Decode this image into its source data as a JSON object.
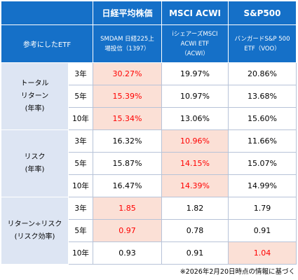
{
  "header": {
    "corner_label": "参考にしたETF",
    "columns": [
      {
        "title": "日経平均株価",
        "fund_lines": [
          "SMDAM 日経225上",
          "場投信（1397）"
        ]
      },
      {
        "title": "MSCI ACWI",
        "fund_lines": [
          "iシェアーズMSCI",
          "ACWI ETF",
          "（ACWI）"
        ]
      },
      {
        "title": "S&P500",
        "fund_lines": [
          "バンガードS&P 500",
          "ETF（VOO）"
        ]
      }
    ]
  },
  "groups": [
    {
      "label_lines": [
        "トータル",
        "リターン",
        "(年率)"
      ],
      "rows": [
        {
          "period": "3年",
          "values": [
            "30.27%",
            "19.97%",
            "20.86%"
          ],
          "highlight": [
            true,
            false,
            false
          ]
        },
        {
          "period": "5年",
          "values": [
            "15.39%",
            "10.97%",
            "13.68%"
          ],
          "highlight": [
            true,
            false,
            false
          ]
        },
        {
          "period": "10年",
          "values": [
            "15.34%",
            "13.06%",
            "15.60%"
          ],
          "highlight": [
            true,
            false,
            false
          ]
        }
      ]
    },
    {
      "label_lines": [
        "リスク",
        "(年率)"
      ],
      "rows": [
        {
          "period": "3年",
          "values": [
            "16.32%",
            "10.96%",
            "11.66%"
          ],
          "highlight": [
            false,
            true,
            false
          ]
        },
        {
          "period": "5年",
          "values": [
            "15.87%",
            "14.15%",
            "15.07%"
          ],
          "highlight": [
            false,
            true,
            false
          ]
        },
        {
          "period": "10年",
          "values": [
            "16.47%",
            "14.39%",
            "14.99%"
          ],
          "highlight": [
            false,
            true,
            false
          ]
        }
      ]
    },
    {
      "label_lines": [
        "リターン÷リスク",
        "(リスク効率)"
      ],
      "rows": [
        {
          "period": "3年",
          "values": [
            "1.85",
            "1.82",
            "1.79"
          ],
          "highlight": [
            true,
            false,
            false
          ]
        },
        {
          "period": "5年",
          "values": [
            "0.97",
            "0.78",
            "0.91"
          ],
          "highlight": [
            true,
            false,
            false
          ]
        },
        {
          "period": "10年",
          "values": [
            "0.93",
            "0.91",
            "1.04"
          ],
          "highlight": [
            false,
            false,
            true
          ]
        }
      ]
    }
  ],
  "footnote": "※2026年2月20日時点の情報に基づく",
  "colors": {
    "header_bg": "#1570c8",
    "category_bg": "#dde5f3",
    "highlight_bg": "#fbe0d6",
    "highlight_text": "#ff0000"
  }
}
